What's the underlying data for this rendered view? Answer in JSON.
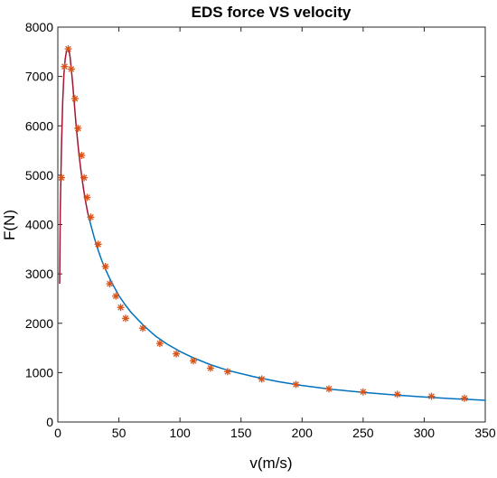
{
  "chart_data": {
    "type": "line",
    "title": "EDS force VS velocity",
    "xlabel": "v(m/s)",
    "ylabel": "F(N)",
    "xlim": [
      0,
      350
    ],
    "ylim": [
      0,
      8000
    ],
    "xticks": [
      0,
      50,
      100,
      150,
      200,
      250,
      300,
      350
    ],
    "yticks": [
      0,
      1000,
      2000,
      3000,
      4000,
      5000,
      6000,
      7000,
      8000
    ],
    "grid": false,
    "legend": "none",
    "series": [
      {
        "style": "line",
        "color": "#a2142f",
        "x": [
          1.5,
          2,
          3,
          4,
          5,
          6,
          7,
          8,
          9,
          10,
          11,
          12,
          13,
          14,
          15,
          16,
          17,
          18,
          19,
          20,
          21,
          22,
          23,
          24,
          25
        ],
        "y": [
          2800,
          4300,
          5600,
          6500,
          7050,
          7350,
          7500,
          7560,
          7550,
          7400,
          7150,
          6900,
          6600,
          6300,
          6000,
          5750,
          5500,
          5280,
          5080,
          4900,
          4730,
          4570,
          4430,
          4300,
          4180
        ]
      },
      {
        "style": "line",
        "color": "#0072bd",
        "x": [
          25,
          28,
          30,
          33,
          36,
          40,
          43,
          46,
          50,
          55,
          60,
          70,
          80,
          90,
          100,
          110,
          125,
          140,
          160,
          180,
          200,
          225,
          250,
          275,
          300,
          325,
          350
        ],
        "y": [
          4180,
          3900,
          3720,
          3480,
          3270,
          3040,
          2880,
          2740,
          2560,
          2380,
          2220,
          1960,
          1740,
          1570,
          1430,
          1310,
          1160,
          1040,
          920,
          820,
          740,
          660,
          600,
          550,
          505,
          470,
          440
        ]
      },
      {
        "style": "markers",
        "color": "#d95319",
        "marker": "asterisk",
        "x": [
          3,
          5.5,
          8.5,
          11,
          14,
          16.5,
          19.5,
          21.5,
          24,
          27,
          33,
          39,
          42.5,
          47.5,
          51.5,
          55.5,
          69.5,
          83.5,
          97,
          111,
          125,
          139,
          167,
          195,
          222,
          250,
          278,
          306,
          333
        ],
        "y": [
          4950,
          7200,
          7560,
          7150,
          6550,
          5950,
          5400,
          4950,
          4550,
          4150,
          3600,
          3150,
          2800,
          2550,
          2320,
          2100,
          1900,
          1590,
          1380,
          1240,
          1090,
          1020,
          870,
          760,
          670,
          610,
          560,
          520,
          480
        ]
      }
    ]
  }
}
